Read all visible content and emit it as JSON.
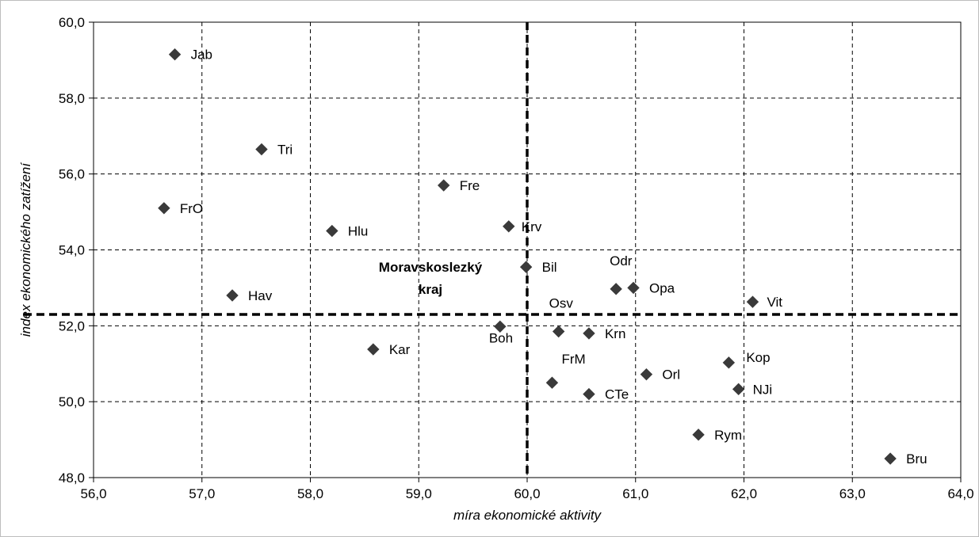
{
  "chart_data": {
    "type": "scatter",
    "xlabel": "míra ekonomické aktivity",
    "ylabel": "index ekonomického zatížení",
    "xlim": [
      56,
      64
    ],
    "ylim": [
      48,
      60
    ],
    "x_ticks": [
      "56,0",
      "57,0",
      "58,0",
      "59,0",
      "60,0",
      "61,0",
      "62,0",
      "63,0",
      "64,0"
    ],
    "y_ticks": [
      "48,0",
      "50,0",
      "52,0",
      "54,0",
      "56,0",
      "58,0",
      "60,0"
    ],
    "grid": true,
    "marker": "diamond",
    "marker_color": "#3a3a3a",
    "reference_lines": {
      "x": 60.0,
      "y": 52.3,
      "label_lines": [
        "Moravskoslezký",
        "kraj"
      ]
    },
    "points": [
      {
        "label": "Jab",
        "x": 56.75,
        "y": 59.15
      },
      {
        "label": "Tri",
        "x": 57.55,
        "y": 56.65
      },
      {
        "label": "FrO",
        "x": 56.65,
        "y": 55.1
      },
      {
        "label": "Hlu",
        "x": 58.2,
        "y": 54.5
      },
      {
        "label": "Hav",
        "x": 57.28,
        "y": 52.8
      },
      {
        "label": "Kar",
        "x": 58.58,
        "y": 51.38
      },
      {
        "label": "Fre",
        "x": 59.23,
        "y": 55.7
      },
      {
        "label": "Krv",
        "x": 59.83,
        "y": 54.62
      },
      {
        "label": "Bil",
        "x": 59.99,
        "y": 53.55
      },
      {
        "label": "Boh",
        "x": 59.75,
        "y": 51.98
      },
      {
        "label": "Osv",
        "x": 60.29,
        "y": 51.85
      },
      {
        "label": "Krn",
        "x": 60.57,
        "y": 51.8
      },
      {
        "label": "Odr",
        "x": 60.82,
        "y": 52.97
      },
      {
        "label": "Opa",
        "x": 60.98,
        "y": 53.0
      },
      {
        "label": "Vit",
        "x": 62.08,
        "y": 52.63
      },
      {
        "label": "FrM",
        "x": 60.23,
        "y": 50.5
      },
      {
        "label": "CTe",
        "x": 60.57,
        "y": 50.2
      },
      {
        "label": "Orl",
        "x": 61.1,
        "y": 50.72
      },
      {
        "label": "Kop",
        "x": 61.86,
        "y": 51.03
      },
      {
        "label": "NJi",
        "x": 61.95,
        "y": 50.33
      },
      {
        "label": "Rym",
        "x": 61.58,
        "y": 49.13
      },
      {
        "label": "Bru",
        "x": 63.35,
        "y": 48.5
      }
    ]
  }
}
